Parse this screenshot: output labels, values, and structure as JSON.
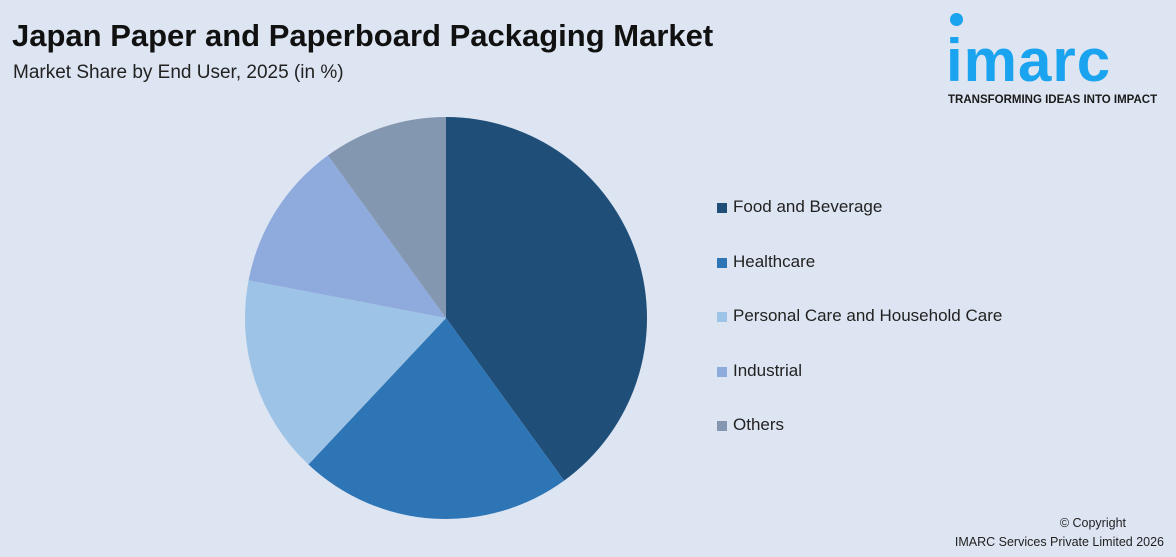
{
  "header": {
    "title": "Japan Paper and Paperboard Packaging Market",
    "subtitle": "Market Share by End User, 2025 (in %)"
  },
  "logo": {
    "text": "imarc",
    "tagline": "TRANSFORMING IDEAS INTO IMPACT",
    "color": "#1aa3ee"
  },
  "chart_data": {
    "type": "pie",
    "title": "Japan Paper and Paperboard Packaging Market",
    "subtitle": "Market Share by End User, 2025 (in %)",
    "start_angle": "12 o'clock, clockwise",
    "legend_position": "right",
    "categories": [
      "Food and Beverage",
      "Healthcare",
      "Personal Care and Household Care",
      "Industrial",
      "Others"
    ],
    "values": [
      40,
      22,
      16,
      12,
      10
    ],
    "colors": [
      "#1f4e79",
      "#2e75b6",
      "#9dc3e6",
      "#8faadc",
      "#8497b0"
    ]
  },
  "footer": {
    "copyright": "© Copyright",
    "company": "IMARC Services Private Limited 2026"
  }
}
